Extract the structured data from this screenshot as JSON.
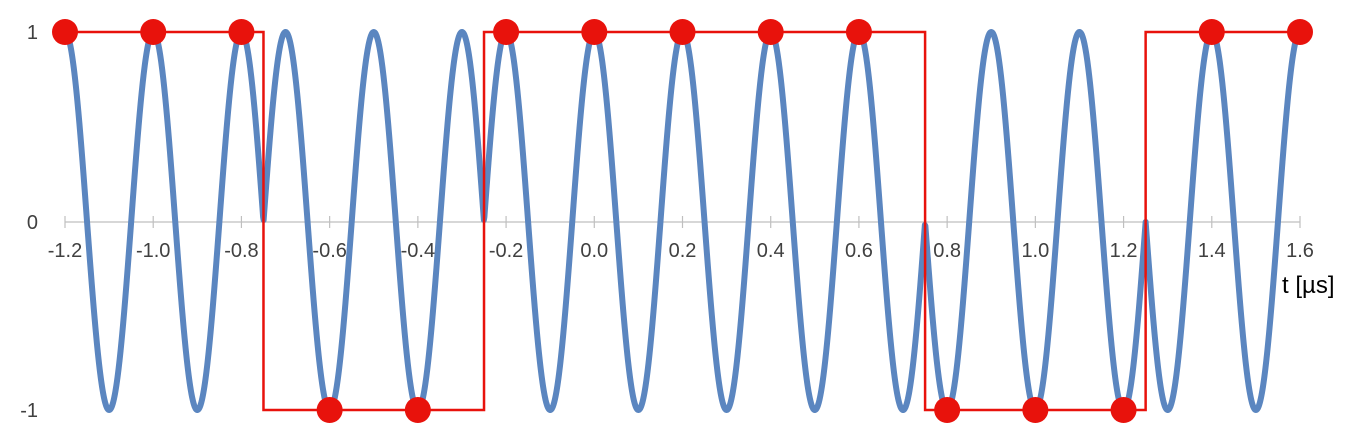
{
  "chart_data": {
    "type": "line",
    "title": "",
    "xlabel": "t [µs]",
    "ylabel": "",
    "xlim": [
      -1.2,
      1.6
    ],
    "ylim": [
      -1,
      1
    ],
    "x_ticks": [
      "-1.2",
      "-1.0",
      "-0.8",
      "-0.6",
      "-0.4",
      "-0.2",
      "0.0",
      "0.2",
      "0.4",
      "0.6",
      "0.8",
      "1.0",
      "1.2",
      "1.4",
      "1.6"
    ],
    "y_ticks": [
      "1",
      "0",
      "-1"
    ],
    "grid": false,
    "legend": "none",
    "series": [
      {
        "type": "line",
        "color": "#5B86C0",
        "points": [],
        "function": "cos(2*pi*5*t) with phase inverted after each bit transition; zero crossings at -0.75, -0.25, 0.75, 1.25"
      },
      {
        "type": "step",
        "color": "#E8120C",
        "x": [
          -1.2,
          -0.75,
          -0.75,
          -0.25,
          -0.25,
          0.75,
          0.75,
          1.25,
          1.25,
          1.6
        ],
        "y": [
          1,
          1,
          -1,
          -1,
          1,
          1,
          -1,
          -1,
          1,
          1
        ]
      },
      {
        "type": "scatter",
        "color": "#E8120C",
        "x": [
          -1.2,
          -1.0,
          -0.8,
          -0.6,
          -0.4,
          -0.2,
          0.0,
          0.2,
          0.4,
          0.6,
          0.8,
          1.0,
          1.2,
          1.4,
          1.6
        ],
        "y": [
          1,
          1,
          1,
          -1,
          -1,
          1,
          1,
          1,
          1,
          1,
          -1,
          -1,
          -1,
          1,
          1
        ]
      }
    ]
  }
}
